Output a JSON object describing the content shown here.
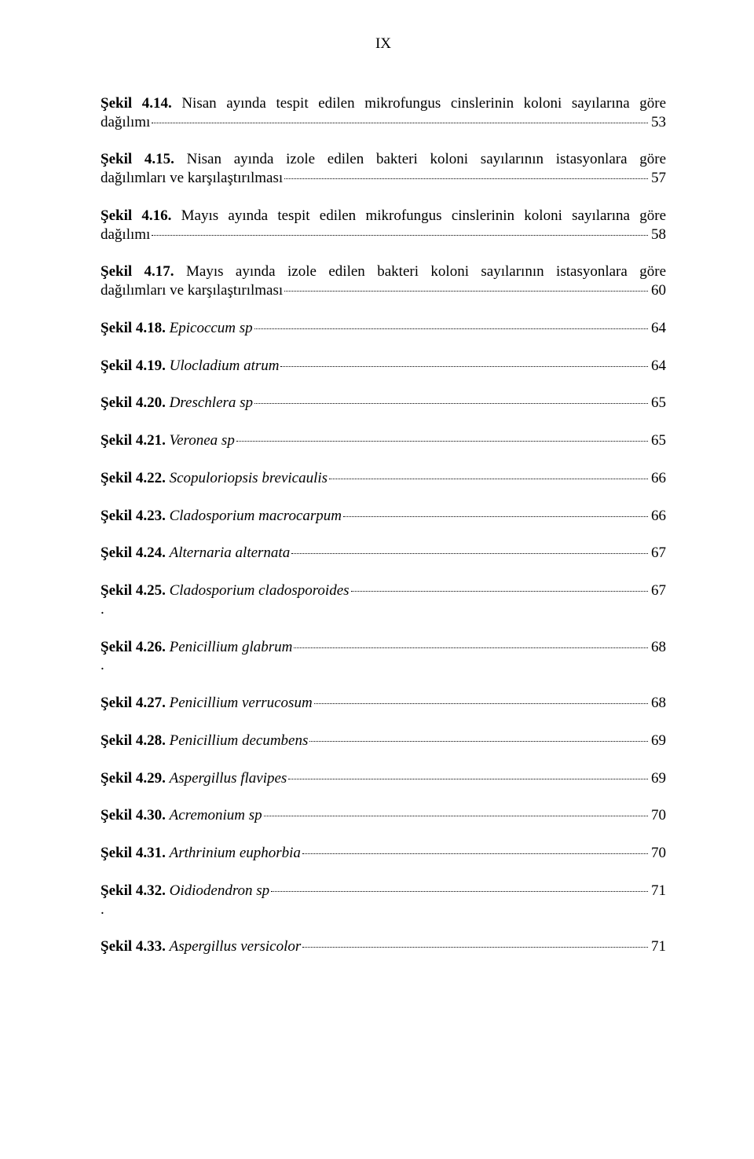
{
  "page_number": "IX",
  "font_family": "Times New Roman",
  "base_fontsize_pt": 14,
  "text_color": "#000000",
  "background_color": "#ffffff",
  "entries": [
    {
      "label": "Şekil 4.14.",
      "text_line1": "Nisan ayında tespit edilen mikrofungus cinslerinin koloni sayılarına göre",
      "text_line2": "dağılımı",
      "page": "53",
      "multiline": true,
      "italic": false
    },
    {
      "label": "Şekil 4.15.",
      "text_line1": "Nisan ayında izole edilen bakteri koloni sayılarının istasyonlara göre",
      "text_line2": "dağılımları ve karşılaştırılması",
      "page": "57",
      "multiline": true,
      "italic": false
    },
    {
      "label": "Şekil 4.16.",
      "text_line1": "Mayıs ayında tespit edilen mikrofungus cinslerinin koloni sayılarına göre",
      "text_line2": "dağılımı",
      "page": "58",
      "multiline": true,
      "italic": false
    },
    {
      "label": "Şekil 4.17.",
      "text_line1": "Mayıs ayında izole edilen bakteri koloni sayılarının istasyonlara göre",
      "text_line2": "dağılımları ve karşılaştırılması",
      "page": "60",
      "multiline": true,
      "italic": false
    },
    {
      "label": "Şekil 4.18.",
      "text": "Epicoccum sp",
      "page": "64",
      "italic": true
    },
    {
      "label": "Şekil 4.19.",
      "text": "Ulocladium atrum",
      "page": "64",
      "italic": true
    },
    {
      "label": "Şekil 4.20.",
      "text": "Dreschlera sp",
      "page": "65",
      "italic": true
    },
    {
      "label": "Şekil 4.21.",
      "text": "Veronea sp",
      "page": "65",
      "italic": true
    },
    {
      "label": "Şekil 4.22.",
      "text": "Scopuloriopsis brevicaulis",
      "page": "66",
      "italic": true
    },
    {
      "label": "Şekil 4.23.",
      "text": "Cladosporium macrocarpum",
      "page": "66",
      "italic": true
    },
    {
      "label": "Şekil 4.24.",
      "text": "Alternaria alternata",
      "page": "67",
      "italic": true
    },
    {
      "label": "Şekil 4.25.",
      "text": "Cladosporium cladosporoides",
      "page": "67",
      "italic": true,
      "trailing_dot": true
    },
    {
      "label": "Şekil 4.26.",
      "text": "Penicillium glabrum",
      "page": "68",
      "italic": true,
      "trailing_dot": true
    },
    {
      "label": "Şekil 4.27.",
      "text": "Penicillium verrucosum",
      "page": "68",
      "italic": true
    },
    {
      "label": "Şekil 4.28.",
      "text": "Penicillium decumbens",
      "page": "69",
      "italic": true
    },
    {
      "label": "Şekil 4.29.",
      "text": "Aspergillus flavipes",
      "page": "69",
      "italic": true
    },
    {
      "label": "Şekil 4.30.",
      "text": " Acremonium sp",
      "page": "70",
      "italic": true
    },
    {
      "label": "Şekil 4.31.",
      "text": "Arthrinium euphorbia",
      "page": "70",
      "italic": true
    },
    {
      "label": "Şekil 4.32.",
      "text": "Oidiodendron sp",
      "page": "71",
      "italic": true,
      "trailing_dot": true
    },
    {
      "label": "Şekil 4.33.",
      "text": "Aspergillus versicolor",
      "page": "71",
      "italic": true
    }
  ]
}
